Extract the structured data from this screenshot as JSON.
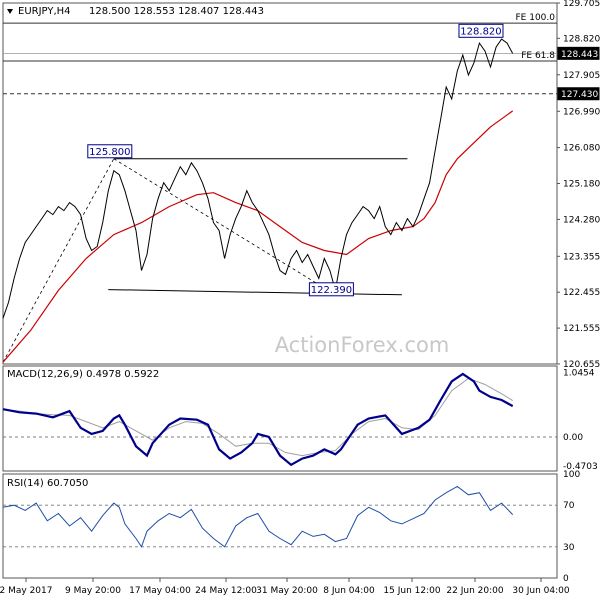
{
  "chart_data": {
    "type": "line",
    "symbol_header": "EURJPY,H4",
    "ohlc_header": "128.500 128.553 128.407 128.443",
    "watermark": "ActionForex.com",
    "colors": {
      "price": "#000000",
      "ma_fast": "#cc0000",
      "macd": "#00008b",
      "signal": "#a0a0a0",
      "rsi": "#1e4fa8",
      "grid": "#555555",
      "label_box": "#00008b"
    },
    "x_ticks": [
      "2 May 2017",
      "9 May 20:00",
      "17 May 04:00",
      "24 May 12:00",
      "31 May 20:00",
      "8 Jun 04:00",
      "15 Jun 12:00",
      "22 Jun 20:00",
      "30 Jun 04:00"
    ],
    "price_panel": {
      "ylim": [
        120.655,
        129.705
      ],
      "y_ticks": [
        129.705,
        128.82,
        127.905,
        126.99,
        126.08,
        125.18,
        124.28,
        123.355,
        122.455,
        121.555,
        120.655
      ],
      "current_price": 128.443,
      "horizontal_levels": [
        {
          "label": "FE 100.0",
          "value": 129.2
        },
        {
          "label": "FE 61.8",
          "value": 128.25
        },
        {
          "label": "127.430",
          "value": 127.43
        }
      ],
      "annotations": [
        {
          "label": "125.800",
          "x": 0.2,
          "value": 125.8
        },
        {
          "label": "122.390",
          "x": 0.6,
          "value": 122.39
        },
        {
          "label": "128.820",
          "x": 0.87,
          "value": 128.82
        }
      ],
      "price": [
        [
          0.0,
          121.8
        ],
        [
          0.01,
          122.2
        ],
        [
          0.02,
          122.8
        ],
        [
          0.03,
          123.3
        ],
        [
          0.04,
          123.7
        ],
        [
          0.05,
          123.9
        ],
        [
          0.06,
          124.1
        ],
        [
          0.07,
          124.3
        ],
        [
          0.08,
          124.5
        ],
        [
          0.09,
          124.4
        ],
        [
          0.1,
          124.6
        ],
        [
          0.11,
          124.5
        ],
        [
          0.12,
          124.7
        ],
        [
          0.13,
          124.6
        ],
        [
          0.14,
          124.4
        ],
        [
          0.15,
          123.8
        ],
        [
          0.16,
          123.5
        ],
        [
          0.17,
          123.6
        ],
        [
          0.18,
          124.2
        ],
        [
          0.19,
          125.0
        ],
        [
          0.2,
          125.5
        ],
        [
          0.21,
          125.4
        ],
        [
          0.22,
          125.0
        ],
        [
          0.23,
          124.5
        ],
        [
          0.24,
          124.0
        ],
        [
          0.25,
          123.0
        ],
        [
          0.26,
          123.4
        ],
        [
          0.27,
          124.3
        ],
        [
          0.28,
          124.8
        ],
        [
          0.29,
          125.2
        ],
        [
          0.3,
          125.0
        ],
        [
          0.31,
          125.3
        ],
        [
          0.32,
          125.6
        ],
        [
          0.33,
          125.4
        ],
        [
          0.34,
          125.7
        ],
        [
          0.35,
          125.5
        ],
        [
          0.36,
          125.2
        ],
        [
          0.37,
          124.8
        ],
        [
          0.38,
          124.2
        ],
        [
          0.39,
          124.0
        ],
        [
          0.4,
          123.3
        ],
        [
          0.41,
          123.9
        ],
        [
          0.42,
          124.3
        ],
        [
          0.43,
          124.6
        ],
        [
          0.44,
          125.0
        ],
        [
          0.45,
          124.7
        ],
        [
          0.46,
          124.5
        ],
        [
          0.47,
          124.2
        ],
        [
          0.48,
          123.9
        ],
        [
          0.49,
          123.4
        ],
        [
          0.5,
          123.0
        ],
        [
          0.51,
          122.9
        ],
        [
          0.52,
          123.3
        ],
        [
          0.53,
          123.5
        ],
        [
          0.54,
          123.2
        ],
        [
          0.55,
          123.4
        ],
        [
          0.56,
          123.1
        ],
        [
          0.57,
          122.8
        ],
        [
          0.58,
          123.3
        ],
        [
          0.59,
          123.0
        ],
        [
          0.6,
          122.5
        ],
        [
          0.61,
          123.3
        ],
        [
          0.62,
          123.9
        ],
        [
          0.63,
          124.2
        ],
        [
          0.64,
          124.4
        ],
        [
          0.65,
          124.6
        ],
        [
          0.66,
          124.5
        ],
        [
          0.67,
          124.3
        ],
        [
          0.68,
          124.6
        ],
        [
          0.69,
          124.1
        ],
        [
          0.7,
          123.9
        ],
        [
          0.71,
          124.2
        ],
        [
          0.72,
          124.0
        ],
        [
          0.73,
          124.3
        ],
        [
          0.74,
          124.1
        ],
        [
          0.75,
          124.4
        ],
        [
          0.76,
          124.8
        ],
        [
          0.77,
          125.2
        ],
        [
          0.78,
          126.0
        ],
        [
          0.79,
          126.8
        ],
        [
          0.8,
          127.6
        ],
        [
          0.81,
          127.3
        ],
        [
          0.82,
          128.0
        ],
        [
          0.83,
          128.4
        ],
        [
          0.84,
          127.9
        ],
        [
          0.85,
          128.2
        ],
        [
          0.86,
          128.7
        ],
        [
          0.87,
          128.5
        ],
        [
          0.88,
          128.1
        ],
        [
          0.89,
          128.6
        ],
        [
          0.9,
          128.8
        ],
        [
          0.91,
          128.7
        ],
        [
          0.92,
          128.44
        ]
      ],
      "moving_average": [
        [
          0.0,
          120.7
        ],
        [
          0.05,
          121.5
        ],
        [
          0.1,
          122.5
        ],
        [
          0.15,
          123.3
        ],
        [
          0.2,
          123.9
        ],
        [
          0.25,
          124.2
        ],
        [
          0.3,
          124.6
        ],
        [
          0.35,
          124.9
        ],
        [
          0.38,
          124.95
        ],
        [
          0.42,
          124.7
        ],
        [
          0.46,
          124.5
        ],
        [
          0.5,
          124.1
        ],
        [
          0.54,
          123.7
        ],
        [
          0.58,
          123.5
        ],
        [
          0.62,
          123.4
        ],
        [
          0.66,
          123.8
        ],
        [
          0.7,
          124.0
        ],
        [
          0.74,
          124.1
        ],
        [
          0.76,
          124.3
        ],
        [
          0.78,
          124.7
        ],
        [
          0.8,
          125.4
        ],
        [
          0.82,
          125.8
        ],
        [
          0.85,
          126.2
        ],
        [
          0.88,
          126.6
        ],
        [
          0.92,
          127.0
        ]
      ]
    },
    "macd_panel": {
      "label": "MACD(12,26,9) 0.4978 0.5922",
      "ylim": [
        -0.55,
        1.15
      ],
      "y_ticks": [
        1.0454,
        0.0,
        -0.4703
      ],
      "macd": [
        [
          0.0,
          0.45
        ],
        [
          0.03,
          0.4
        ],
        [
          0.06,
          0.38
        ],
        [
          0.09,
          0.32
        ],
        [
          0.12,
          0.42
        ],
        [
          0.14,
          0.15
        ],
        [
          0.16,
          0.05
        ],
        [
          0.18,
          0.1
        ],
        [
          0.2,
          0.3
        ],
        [
          0.21,
          0.35
        ],
        [
          0.22,
          0.2
        ],
        [
          0.24,
          -0.15
        ],
        [
          0.26,
          -0.3
        ],
        [
          0.27,
          -0.1
        ],
        [
          0.3,
          0.2
        ],
        [
          0.32,
          0.3
        ],
        [
          0.35,
          0.28
        ],
        [
          0.37,
          0.2
        ],
        [
          0.39,
          -0.2
        ],
        [
          0.41,
          -0.35
        ],
        [
          0.43,
          -0.25
        ],
        [
          0.45,
          -0.1
        ],
        [
          0.46,
          0.05
        ],
        [
          0.48,
          0.0
        ],
        [
          0.5,
          -0.3
        ],
        [
          0.52,
          -0.45
        ],
        [
          0.54,
          -0.35
        ],
        [
          0.56,
          -0.3
        ],
        [
          0.58,
          -0.2
        ],
        [
          0.6,
          -0.28
        ],
        [
          0.61,
          -0.2
        ],
        [
          0.64,
          0.2
        ],
        [
          0.66,
          0.3
        ],
        [
          0.69,
          0.35
        ],
        [
          0.72,
          0.05
        ],
        [
          0.75,
          0.15
        ],
        [
          0.77,
          0.28
        ],
        [
          0.79,
          0.6
        ],
        [
          0.81,
          0.9
        ],
        [
          0.83,
          1.02
        ],
        [
          0.85,
          0.9
        ],
        [
          0.86,
          0.75
        ],
        [
          0.88,
          0.65
        ],
        [
          0.9,
          0.6
        ],
        [
          0.92,
          0.5
        ]
      ],
      "signal": [
        [
          0.0,
          0.45
        ],
        [
          0.03,
          0.42
        ],
        [
          0.06,
          0.38
        ],
        [
          0.09,
          0.36
        ],
        [
          0.12,
          0.35
        ],
        [
          0.15,
          0.25
        ],
        [
          0.18,
          0.15
        ],
        [
          0.21,
          0.25
        ],
        [
          0.24,
          0.1
        ],
        [
          0.27,
          -0.05
        ],
        [
          0.3,
          0.15
        ],
        [
          0.33,
          0.25
        ],
        [
          0.36,
          0.22
        ],
        [
          0.39,
          0.05
        ],
        [
          0.42,
          -0.15
        ],
        [
          0.45,
          -0.1
        ],
        [
          0.48,
          -0.1
        ],
        [
          0.51,
          -0.25
        ],
        [
          0.54,
          -0.3
        ],
        [
          0.57,
          -0.25
        ],
        [
          0.6,
          -0.22
        ],
        [
          0.63,
          0.05
        ],
        [
          0.66,
          0.25
        ],
        [
          0.69,
          0.3
        ],
        [
          0.72,
          0.15
        ],
        [
          0.75,
          0.12
        ],
        [
          0.78,
          0.35
        ],
        [
          0.81,
          0.75
        ],
        [
          0.84,
          0.95
        ],
        [
          0.87,
          0.85
        ],
        [
          0.9,
          0.7
        ],
        [
          0.92,
          0.59
        ]
      ]
    },
    "rsi_panel": {
      "label": "RSI(14) 60.7050",
      "ylim": [
        0,
        100
      ],
      "y_ticks": [
        100,
        70,
        30,
        0
      ],
      "levels": [
        70,
        30
      ],
      "rsi": [
        [
          0.0,
          68
        ],
        [
          0.02,
          70
        ],
        [
          0.04,
          65
        ],
        [
          0.06,
          72
        ],
        [
          0.08,
          55
        ],
        [
          0.1,
          62
        ],
        [
          0.12,
          50
        ],
        [
          0.14,
          58
        ],
        [
          0.16,
          45
        ],
        [
          0.18,
          60
        ],
        [
          0.2,
          72
        ],
        [
          0.21,
          68
        ],
        [
          0.22,
          52
        ],
        [
          0.24,
          38
        ],
        [
          0.25,
          30
        ],
        [
          0.26,
          45
        ],
        [
          0.28,
          55
        ],
        [
          0.3,
          62
        ],
        [
          0.32,
          58
        ],
        [
          0.34,
          66
        ],
        [
          0.36,
          48
        ],
        [
          0.38,
          38
        ],
        [
          0.4,
          30
        ],
        [
          0.42,
          50
        ],
        [
          0.44,
          58
        ],
        [
          0.46,
          62
        ],
        [
          0.48,
          45
        ],
        [
          0.5,
          38
        ],
        [
          0.52,
          32
        ],
        [
          0.54,
          45
        ],
        [
          0.56,
          40
        ],
        [
          0.58,
          42
        ],
        [
          0.6,
          35
        ],
        [
          0.62,
          38
        ],
        [
          0.64,
          60
        ],
        [
          0.66,
          68
        ],
        [
          0.68,
          63
        ],
        [
          0.7,
          55
        ],
        [
          0.72,
          52
        ],
        [
          0.74,
          57
        ],
        [
          0.76,
          62
        ],
        [
          0.78,
          75
        ],
        [
          0.8,
          82
        ],
        [
          0.82,
          88
        ],
        [
          0.84,
          80
        ],
        [
          0.86,
          82
        ],
        [
          0.88,
          65
        ],
        [
          0.9,
          72
        ],
        [
          0.92,
          61
        ]
      ]
    }
  }
}
